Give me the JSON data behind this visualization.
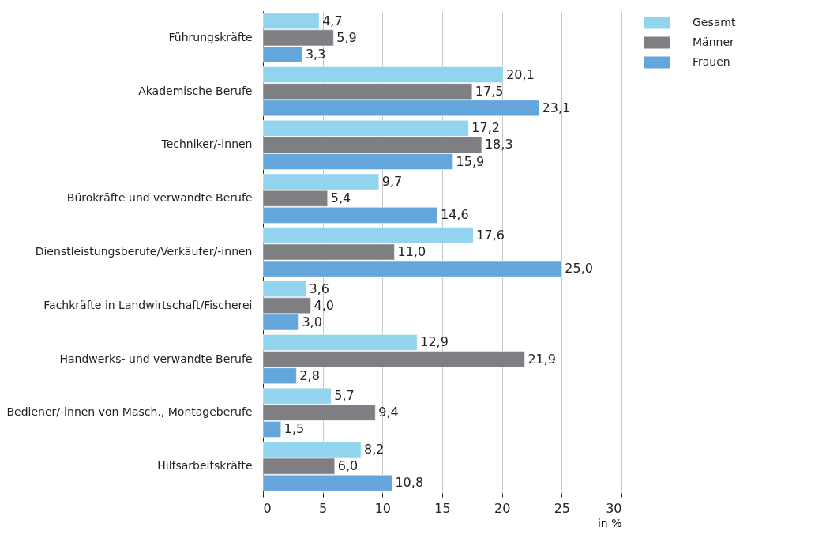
{
  "chart_data": {
    "type": "bar",
    "orientation": "horizontal",
    "xlabel": "in %",
    "categories": [
      "Führungskräfte",
      "Akademische Berufe",
      "Techniker/-innen",
      "Bürokräfte und verwandte Berufe",
      "Dienstleistungsberufe/Verkäufer/-innen",
      "Fachkräfte in Landwirtschaft/Fischerei",
      "Handwerks- und verwandte Berufe",
      "Bediener/-innen von Masch., Montageberufe",
      "Hilfsarbeitskräfte"
    ],
    "series": [
      {
        "name": "Gesamt",
        "color": "#92d3ee",
        "values": [
          4.7,
          20.1,
          17.2,
          9.7,
          17.6,
          3.6,
          12.9,
          5.7,
          8.2
        ],
        "value_labels": [
          "4,7",
          "20,1",
          "17,2",
          "9,7",
          "17,6",
          "3,6",
          "12,9",
          "5,7",
          "8,2"
        ]
      },
      {
        "name": "Männer",
        "color": "#7e7f83",
        "values": [
          5.9,
          17.5,
          18.3,
          5.4,
          11.0,
          4.0,
          21.9,
          9.4,
          6.0
        ],
        "value_labels": [
          "5,9",
          "17,5",
          "18,3",
          "5,4",
          "11,0",
          "4,0",
          "21,9",
          "9,4",
          "6,0"
        ]
      },
      {
        "name": "Frauen",
        "color": "#64a6dc",
        "values": [
          3.3,
          23.1,
          15.9,
          14.6,
          25.0,
          3.0,
          2.8,
          1.5,
          10.8
        ],
        "value_labels": [
          "3,3",
          "23,1",
          "15,9",
          "14,6",
          "25,0",
          "3,0",
          "2,8",
          "1,5",
          "10,8"
        ]
      }
    ],
    "xlim": [
      0,
      30
    ],
    "xticks": [
      0,
      5,
      10,
      15,
      20,
      25,
      30
    ],
    "grid": "x",
    "legend": "right"
  }
}
